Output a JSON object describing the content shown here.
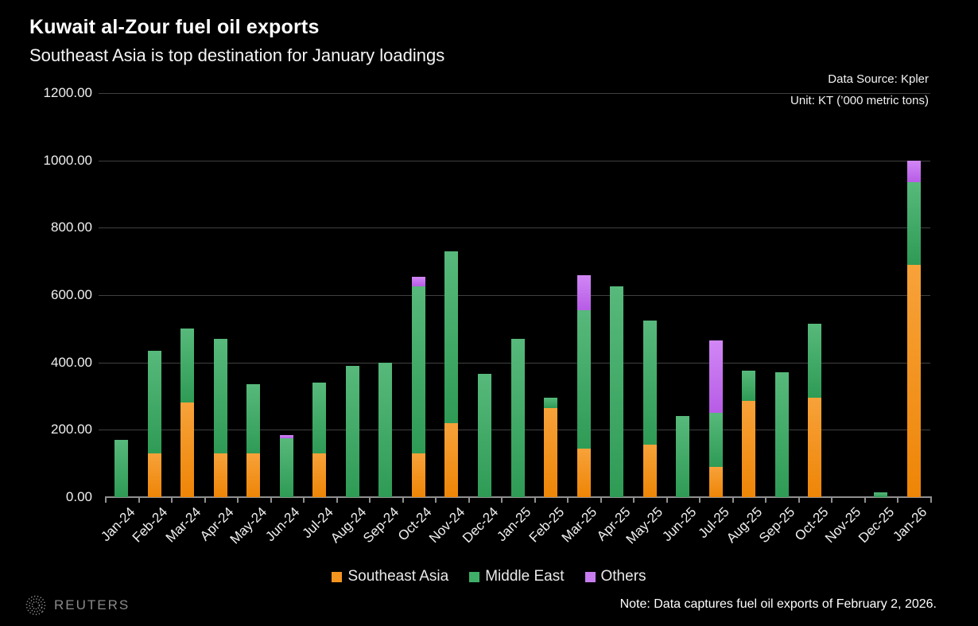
{
  "chart_data": {
    "type": "bar",
    "stacked": true,
    "title": "Kuwait al-Zour fuel oil exports",
    "subtitle": "Southeast Asia is top destination for January loadings",
    "categories": [
      "Jan-24",
      "Feb-24",
      "Mar-24",
      "Apr-24",
      "May-24",
      "Jun-24",
      "Jul-24",
      "Aug-24",
      "Sep-24",
      "Oct-24",
      "Nov-24",
      "Dec-24",
      "Jan-25",
      "Feb-25",
      "Mar-25",
      "Apr-25",
      "May-25",
      "Jun-25",
      "Jul-25",
      "Aug-25",
      "Sep-25",
      "Oct-25",
      "Nov-25",
      "Dec-25",
      "Jan-26"
    ],
    "series": [
      {
        "name": "Southeast Asia",
        "color": "#f5941f",
        "gradient_top": "#f7a23a",
        "gradient_bottom": "#ee8506",
        "values": [
          0,
          130,
          280,
          130,
          130,
          0,
          130,
          0,
          0,
          130,
          220,
          0,
          0,
          265,
          145,
          0,
          155,
          0,
          90,
          285,
          0,
          295,
          0,
          0,
          690
        ]
      },
      {
        "name": "Middle East",
        "color": "#3fae68",
        "gradient_top": "#57b97b",
        "gradient_bottom": "#2e9b55",
        "values": [
          170,
          305,
          220,
          340,
          205,
          175,
          210,
          390,
          400,
          495,
          510,
          365,
          470,
          30,
          410,
          625,
          370,
          240,
          160,
          90,
          370,
          220,
          0,
          15,
          245
        ]
      },
      {
        "name": "Others",
        "color": "#c77df0",
        "gradient_top": "#d187f5",
        "gradient_bottom": "#b75ce6",
        "values": [
          0,
          0,
          0,
          0,
          0,
          10,
          0,
          0,
          0,
          30,
          0,
          0,
          0,
          0,
          105,
          0,
          0,
          0,
          215,
          0,
          0,
          0,
          0,
          0,
          65
        ]
      }
    ],
    "ylim": [
      0,
      1200
    ],
    "y_tick_step": 200,
    "y_tick_labels": [
      "0.00",
      "200.00",
      "400.00",
      "600.00",
      "800.00",
      "1000.00",
      "1200.00"
    ],
    "grid": true,
    "legend_position": "bottom"
  },
  "header": {
    "data_source": "Data Source: Kpler",
    "unit": "Unit: KT (’000 metric tons)"
  },
  "footer": {
    "brand": "REUTERS",
    "note": "Note: Data captures fuel oil exports of February 2, 2026."
  },
  "colors": {
    "background": "#000000",
    "text": "#ffffff",
    "gridline": "#404040",
    "axis": "#909090",
    "brand_gray": "#8a8a8a"
  }
}
